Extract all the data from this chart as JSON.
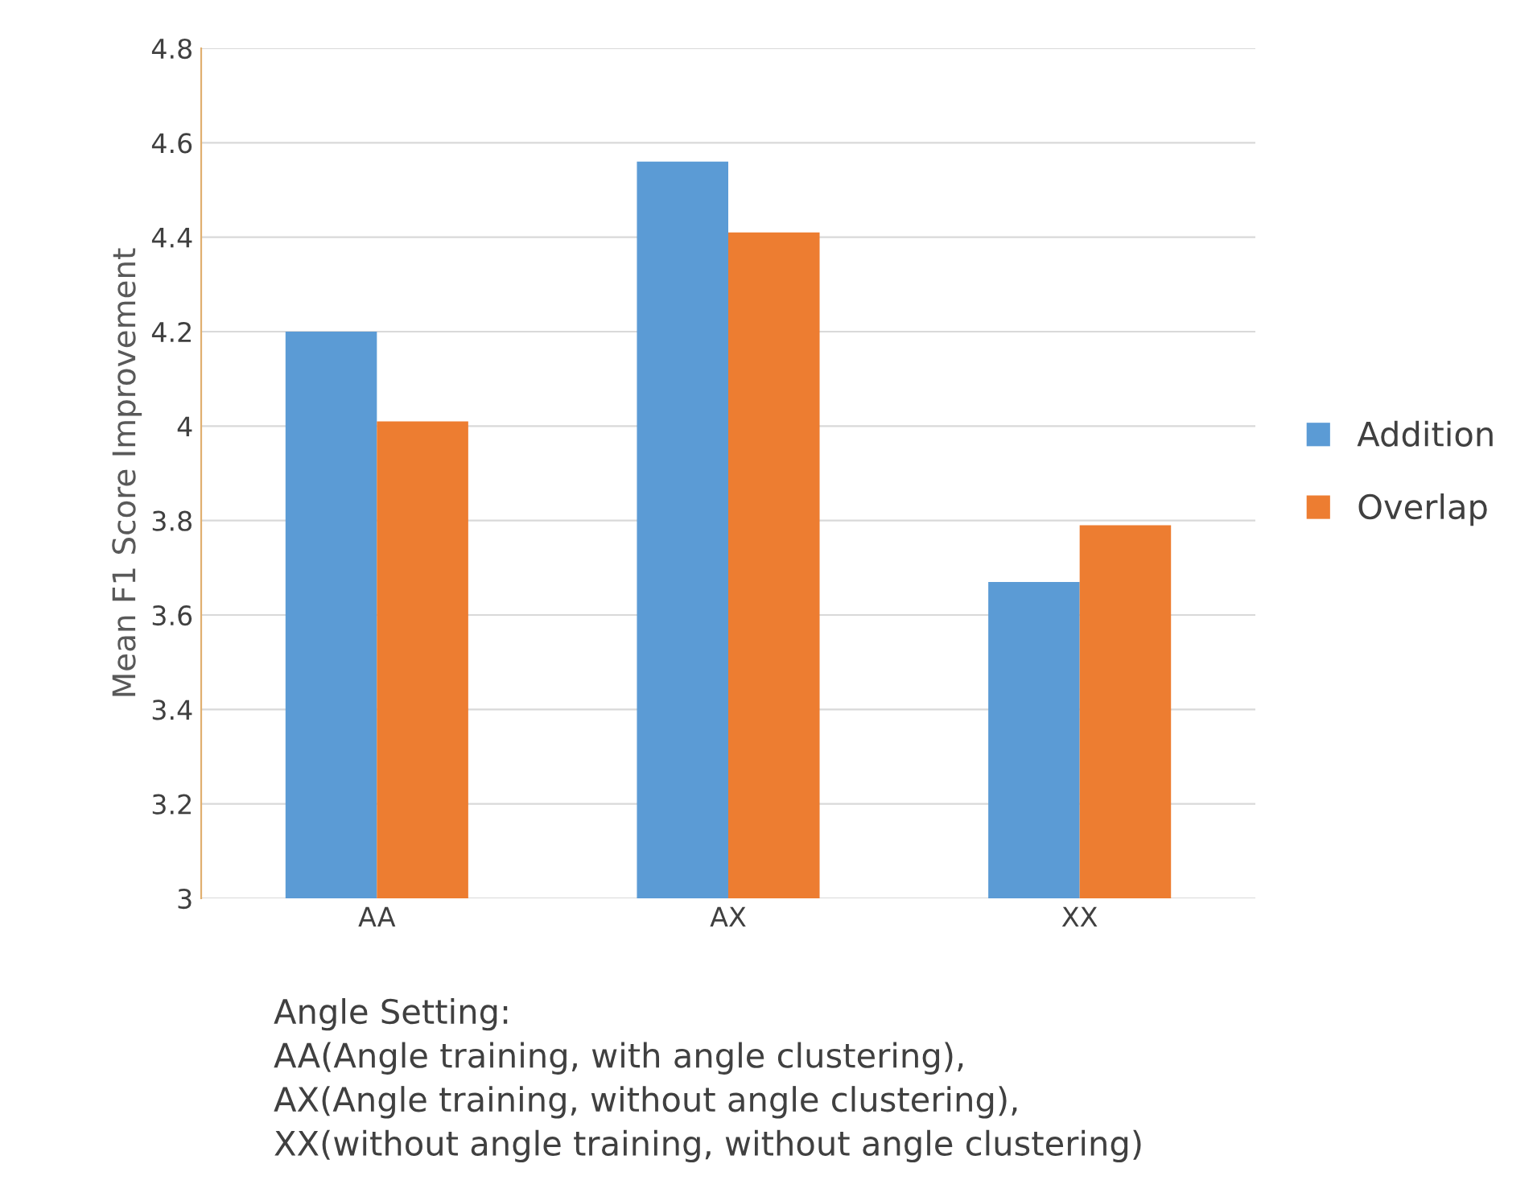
{
  "chart_data": {
    "type": "bar",
    "ylabel": "Mean F1 Score Improvement",
    "categories": [
      "AA",
      "AX",
      "XX"
    ],
    "series": [
      {
        "name": "Addition",
        "color": "#5b9bd5",
        "values": [
          4.2,
          4.56,
          3.67
        ]
      },
      {
        "name": "Overlap",
        "color": "#ed7d31",
        "values": [
          4.01,
          4.41,
          3.79
        ]
      }
    ],
    "ylim": [
      3,
      4.8
    ],
    "yticks": [
      3,
      3.2,
      3.4,
      3.6,
      3.8,
      4,
      4.2,
      4.4,
      4.6,
      4.8
    ],
    "grid": "y",
    "legend": "right",
    "annotations": [
      "Angle Setting:\nAA(Angle training, with angle clustering),\nAX(Angle training, without angle clustering),\nXX(without angle training, without angle clustering)"
    ]
  }
}
